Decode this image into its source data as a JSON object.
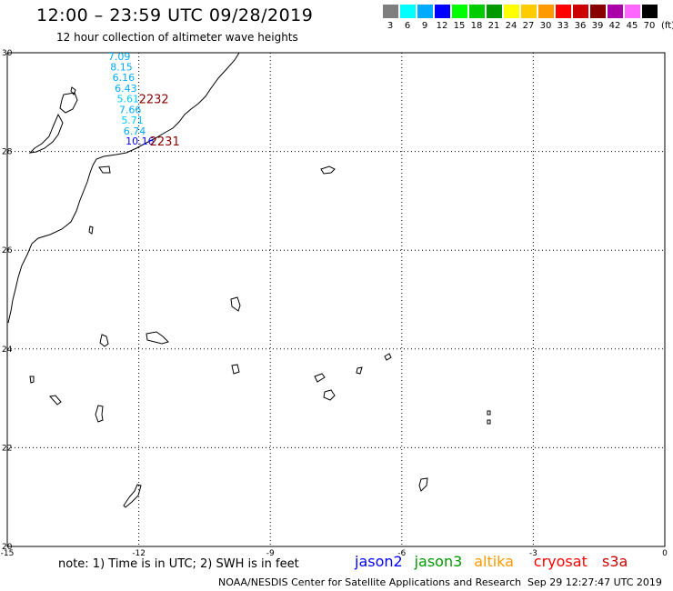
{
  "header": {
    "title": "12:00 – 23:59 UTC 09/28/2019",
    "subtitle": "12 hour collection of altimeter wave heights"
  },
  "legend": {
    "unit": "(ft)",
    "bins": [
      {
        "label": "3",
        "color": "#7f7f7f"
      },
      {
        "label": "6",
        "color": "#00ffff"
      },
      {
        "label": "9",
        "color": "#00aaff"
      },
      {
        "label": "12",
        "color": "#0000ff"
      },
      {
        "label": "15",
        "color": "#00ff00"
      },
      {
        "label": "18",
        "color": "#00cc00"
      },
      {
        "label": "21",
        "color": "#009900"
      },
      {
        "label": "24",
        "color": "#ffff00"
      },
      {
        "label": "27",
        "color": "#ffcc00"
      },
      {
        "label": "30",
        "color": "#ff9900"
      },
      {
        "label": "33",
        "color": "#ff0000"
      },
      {
        "label": "36",
        "color": "#cc0000"
      },
      {
        "label": "39",
        "color": "#880000"
      },
      {
        "label": "42",
        "color": "#aa00aa"
      },
      {
        "label": "45",
        "color": "#ff66ff"
      },
      {
        "label": "70",
        "color": "#000000"
      }
    ]
  },
  "map": {
    "lon_range": [
      -15,
      0
    ],
    "lat_range": [
      20,
      30
    ],
    "lon_ticks": [
      "-15",
      "-12",
      "-9",
      "-6",
      "-3",
      "0"
    ],
    "lat_ticks": [
      "30",
      "28",
      "26",
      "24",
      "22",
      "20"
    ],
    "wave_readings": [
      {
        "value": "7.09",
        "lat": 29.93,
        "lon": -12.7,
        "color": "#00aaff"
      },
      {
        "value": "8.15",
        "lat": 29.71,
        "lon": -12.65,
        "color": "#00aaff"
      },
      {
        "value": "6.16",
        "lat": 29.5,
        "lon": -12.6,
        "color": "#00aaff"
      },
      {
        "value": "6.43",
        "lat": 29.28,
        "lon": -12.55,
        "color": "#00aaff"
      },
      {
        "value": "5.61",
        "lat": 29.07,
        "lon": -12.5,
        "color": "#00ccff"
      },
      {
        "value": "7.66",
        "lat": 28.85,
        "lon": -12.45,
        "color": "#00aaff"
      },
      {
        "value": "5.71",
        "lat": 28.64,
        "lon": -12.4,
        "color": "#00ccff"
      },
      {
        "value": "6.74",
        "lat": 28.42,
        "lon": -12.35,
        "color": "#00aaff"
      },
      {
        "value": "10.16",
        "lat": 28.21,
        "lon": -12.3,
        "color": "#0000ff"
      }
    ],
    "pass_labels": [
      {
        "value": "2232",
        "lat": 29.07,
        "lon": -12.0,
        "color": "#880000"
      },
      {
        "value": "2231",
        "lat": 28.21,
        "lon": -11.75,
        "color": "#880000"
      }
    ]
  },
  "footer": {
    "note": "note:  1) Time is in UTC;  2) SWH is in feet",
    "satellites": [
      {
        "name": "jason2",
        "color": "#0000ff"
      },
      {
        "name": "jason3",
        "color": "#009900"
      },
      {
        "name": "altika",
        "color": "#ff9900"
      },
      {
        "name": "cryosat",
        "color": "#ff0000"
      },
      {
        "name": "s3a",
        "color": "#cc0000"
      }
    ],
    "credit": "NOAA/NESDIS Center for Satellite Applications and Research",
    "timestamp": "Sep 29 12:27:47 UTC 2019"
  }
}
